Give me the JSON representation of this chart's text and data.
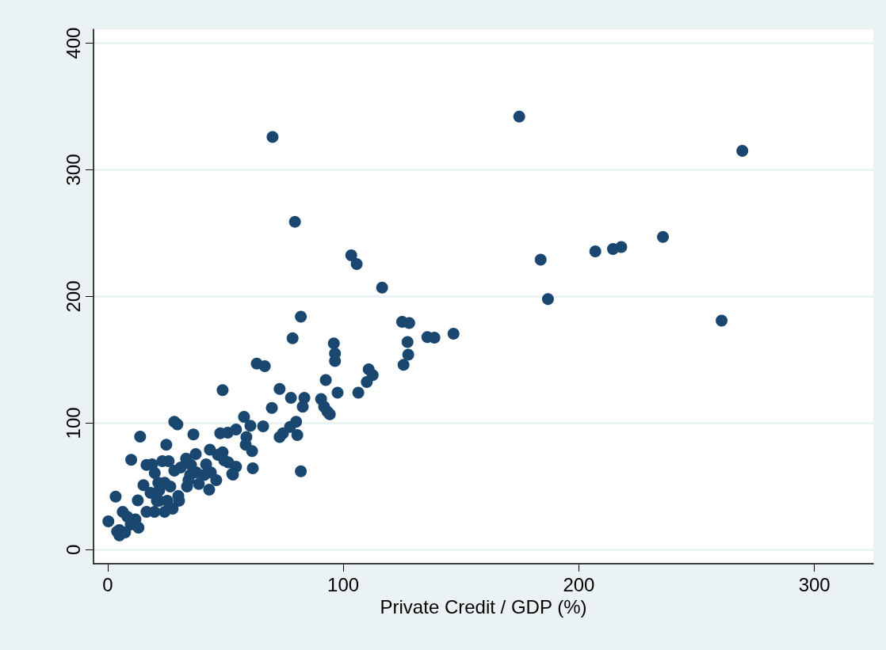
{
  "chart_data": {
    "type": "scatter",
    "xlabel": "Private Credit / GDP (%)",
    "color": "#1a476f",
    "marker": "circle",
    "grid": "y",
    "xlim": [
      -6,
      325
    ],
    "ylim": [
      -11,
      411
    ],
    "xticks": [
      0,
      100,
      200,
      300
    ],
    "yticks": [
      0,
      100,
      200,
      300,
      400
    ],
    "x": [
      174.7,
      70,
      269.4,
      79.5,
      235.7,
      218,
      214.5,
      207,
      183.8,
      103.4,
      105.7,
      116.5,
      186.9,
      260.6,
      82,
      125,
      128,
      146.8,
      135.7,
      138.7,
      127.3,
      96,
      78.5,
      96.5,
      96.5,
      127.6,
      125.6,
      110.8,
      112.5,
      110,
      63.3,
      66.7,
      92.6,
      48.8,
      73,
      106.4,
      97.6,
      77.8,
      83.5,
      90.6,
      82.8,
      91.9,
      93.3,
      94.3,
      69.7,
      57.9,
      80,
      77.4,
      74.4,
      73,
      80.5,
      66,
      60.6,
      82,
      61.6,
      54.5,
      52.9,
      28.3,
      29.6,
      13.8,
      36.4,
      24.9,
      10,
      16.5,
      18.9,
      20,
      23.2,
      25.9,
      28.3,
      31,
      33.3,
      35.4,
      37.4,
      35,
      33.7,
      37.7,
      41.8,
      43.4,
      41,
      43.8,
      46.1,
      43.1,
      38.7,
      46.8,
      48.8,
      49.5,
      51.2,
      47.8,
      51,
      54.5,
      58.9,
      58.6,
      61.3,
      53.2,
      15.2,
      3.4,
      12.8,
      18.2,
      21.9,
      24.2,
      26.6,
      30,
      30.3,
      24.2,
      27.6,
      25.3,
      20.9,
      19.9,
      16.5,
      6.4,
      8.4,
      11.8,
      13.1,
      9.8,
      5,
      5,
      0.3,
      7.4,
      4,
      34.3,
      21.5,
      21.9
    ],
    "values": [
      342,
      326,
      315,
      259,
      247,
      239,
      237.5,
      235.6,
      229,
      232.5,
      225.6,
      207,
      198,
      181,
      184,
      180,
      179,
      170.6,
      168,
      167.5,
      164,
      163,
      167,
      155,
      149,
      154,
      146,
      142.5,
      138,
      132.5,
      147,
      145,
      134,
      126,
      127,
      124,
      124,
      120,
      120,
      119,
      113,
      113,
      109,
      107,
      112,
      105,
      101,
      97,
      92,
      89,
      90.6,
      97.5,
      98,
      62,
      64.4,
      65.6,
      60,
      101,
      99,
      89.4,
      91,
      83,
      71,
      67,
      67.5,
      60.6,
      70,
      70,
      62.5,
      65,
      72,
      67,
      75.6,
      59,
      50,
      61,
      67.5,
      79,
      59,
      61,
      55,
      47.5,
      52,
      75,
      77,
      70.6,
      69,
      92,
      92.5,
      95,
      89,
      83,
      78,
      59.4,
      51,
      42,
      39,
      45,
      47,
      53,
      50,
      42.5,
      38.7,
      30,
      32.5,
      38.7,
      38.7,
      30,
      30,
      30,
      26,
      24,
      17.5,
      20,
      15.6,
      11.4,
      22.5,
      13.7,
      14.4,
      55,
      53,
      38.7
    ]
  }
}
